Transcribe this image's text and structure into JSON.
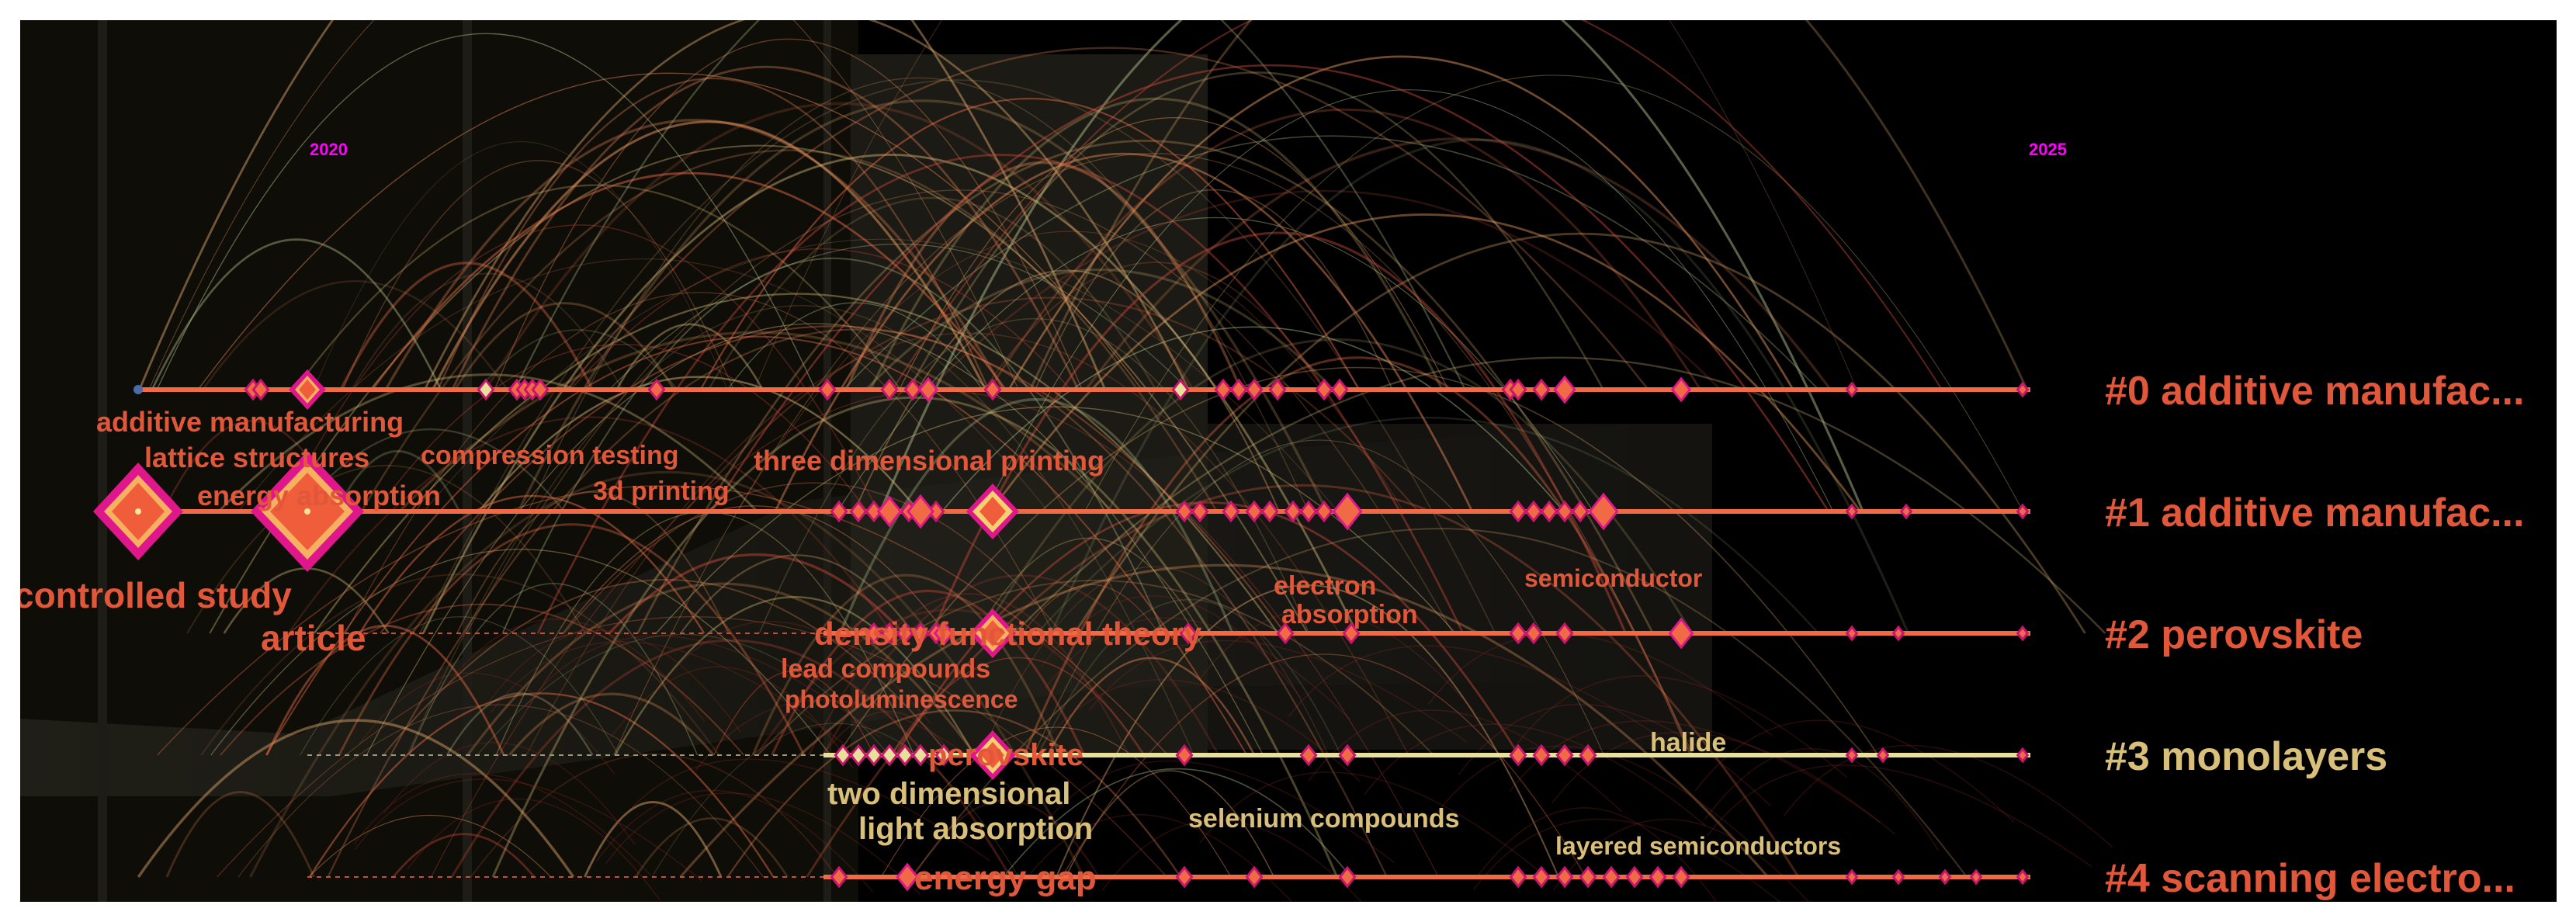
{
  "years": [
    "2020",
    "2025"
  ],
  "clusters": [
    {
      "label": "#0 additive manufac...",
      "color": "#e0573a"
    },
    {
      "label": "#1 additive manufac...",
      "color": "#e0573a"
    },
    {
      "label": "#2 perovskite",
      "color": "#e0573a"
    },
    {
      "label": "#3 monolayers",
      "color": "#d9c07a"
    },
    {
      "label": "#4 scanning electro...",
      "color": "#e0573a"
    }
  ],
  "keywords": [
    {
      "text": "additive manufacturing"
    },
    {
      "text": "lattice structures"
    },
    {
      "text": "energy absorption"
    },
    {
      "text": "compression testing"
    },
    {
      "text": "3d printing"
    },
    {
      "text": "three dimensional printing"
    },
    {
      "text": "controlled study"
    },
    {
      "text": "article"
    },
    {
      "text": "electron"
    },
    {
      "text": "absorption"
    },
    {
      "text": "semiconductor"
    },
    {
      "text": "density functional theory"
    },
    {
      "text": "lead compounds"
    },
    {
      "text": "photoluminescence"
    },
    {
      "text": "perovskite"
    },
    {
      "text": "two dimensional"
    },
    {
      "text": "light absorption"
    },
    {
      "text": "selenium compounds"
    },
    {
      "text": "halide"
    },
    {
      "text": "layered semiconductors"
    },
    {
      "text": "energy gap"
    }
  ],
  "colors": {
    "background": "#000000",
    "line_orange": "#f06a45",
    "line_yellow": "#e8df9a",
    "label_red": "#e0573a",
    "label_gold": "#d9c07a",
    "node_magenta": "#e0178a",
    "year_magenta": "#ff00ff"
  }
}
